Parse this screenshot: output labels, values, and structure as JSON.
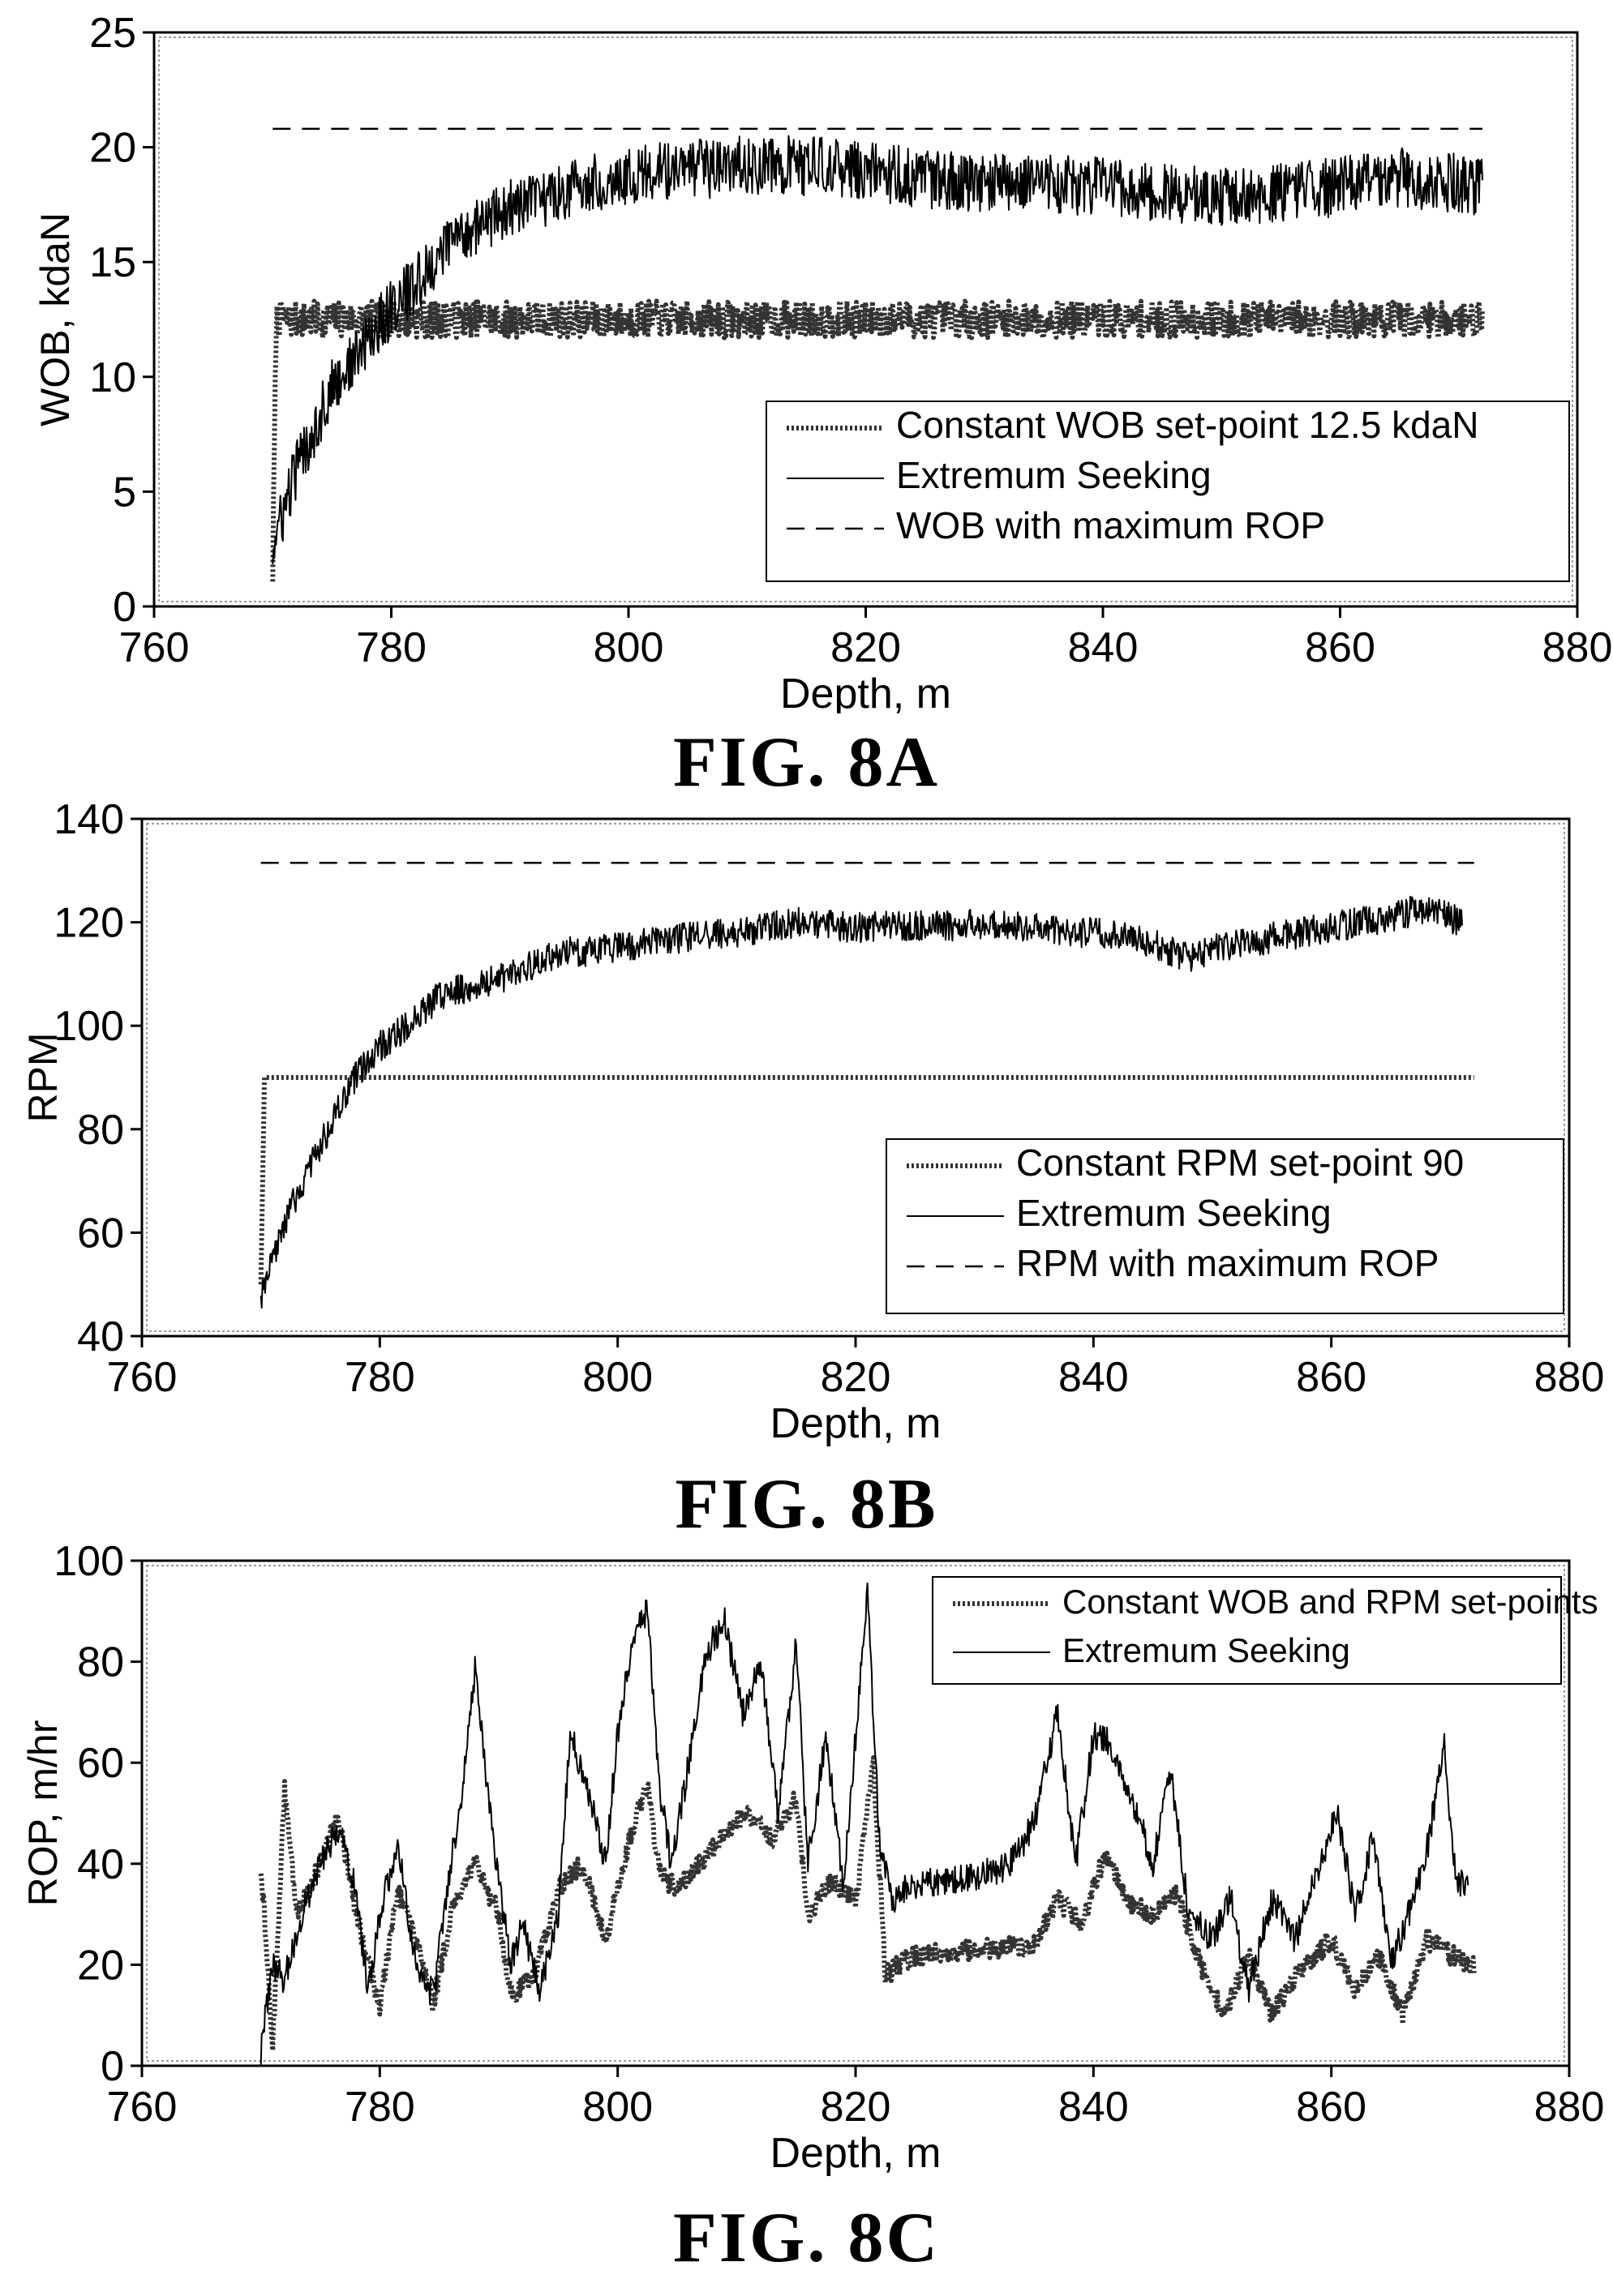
{
  "figures": [
    {
      "caption": "FIG. 8A"
    },
    {
      "caption": "FIG. 8B"
    },
    {
      "caption": "FIG. 8C"
    }
  ],
  "chart_data": [
    {
      "type": "line",
      "xlabel": "Depth, m",
      "ylabel": "WOB, kdaN",
      "xlim": [
        760,
        880
      ],
      "ylim": [
        0,
        25
      ],
      "x_ticks": [
        760,
        780,
        800,
        820,
        840,
        860,
        880
      ],
      "y_ticks": [
        0,
        5,
        10,
        15,
        20,
        25
      ],
      "legend_position": "lower-right",
      "series": [
        {
          "name": "Constant WOB set-point 12.5 kdaN",
          "style": "dotted-thick",
          "x": [
            770,
            770.3,
            772,
            780,
            800,
            820,
            840,
            860,
            872
          ],
          "y": [
            1.5,
            12.5,
            12.5,
            12.5,
            12.5,
            12.5,
            12.5,
            12.5,
            12.5
          ],
          "noise": 0.8
        },
        {
          "name": "Extremum Seeking",
          "style": "solid",
          "x": [
            770,
            772,
            775,
            778,
            780,
            783,
            785,
            790,
            795,
            800,
            805,
            810,
            815,
            820,
            825,
            830,
            840,
            850,
            855,
            860,
            865,
            872
          ],
          "y": [
            2.5,
            6,
            9.5,
            11.5,
            13,
            14.5,
            16,
            17.3,
            18.2,
            18.8,
            19,
            19.2,
            19.2,
            19,
            18.6,
            18.5,
            18.3,
            17.8,
            18,
            18.3,
            18.7,
            18.3
          ],
          "noise": 1.3
        },
        {
          "name": "WOB with maximum ROP",
          "style": "dashed",
          "x": [
            770,
            872
          ],
          "y": [
            20.8,
            20.8
          ],
          "noise": 0
        }
      ]
    },
    {
      "type": "line",
      "xlabel": "Depth, m",
      "ylabel": "RPM",
      "xlim": [
        760,
        880
      ],
      "ylim": [
        40,
        140
      ],
      "x_ticks": [
        760,
        780,
        800,
        820,
        840,
        860,
        880
      ],
      "y_ticks": [
        40,
        60,
        80,
        100,
        120,
        140
      ],
      "legend_position": "lower-right",
      "series": [
        {
          "name": "Constant RPM set-point 90",
          "style": "dotted-thick",
          "x": [
            770,
            770.3,
            772,
            800,
            820,
            840,
            860,
            872
          ],
          "y": [
            50,
            90,
            90,
            90,
            90,
            90,
            90,
            90
          ],
          "noise": 0
        },
        {
          "name": "Extremum Seeking",
          "style": "solid",
          "x": [
            770,
            772,
            775,
            778,
            780,
            783,
            785,
            790,
            795,
            800,
            805,
            810,
            815,
            820,
            830,
            840,
            845,
            848,
            850,
            855,
            860,
            865,
            868,
            871
          ],
          "y": [
            47,
            62,
            77,
            90,
            96,
            101,
            106,
            109,
            114,
            115,
            117,
            118,
            120,
            119,
            119.5,
            118,
            116,
            113,
            115,
            117,
            119,
            121,
            123,
            120
          ],
          "noise": 3
        },
        {
          "name": "RPM with maximum ROP",
          "style": "dashed",
          "x": [
            770,
            872
          ],
          "y": [
            131.5,
            131.5
          ],
          "noise": 0
        }
      ]
    },
    {
      "type": "line",
      "xlabel": "Depth, m",
      "ylabel": "ROP, m/hr",
      "xlim": [
        760,
        880
      ],
      "ylim": [
        0,
        100
      ],
      "x_ticks": [
        760,
        780,
        800,
        820,
        840,
        860,
        880
      ],
      "y_ticks": [
        0,
        20,
        40,
        60,
        80,
        100
      ],
      "legend_position": "top-right",
      "series": [
        {
          "name": "Constant WOB and RPM set-points",
          "style": "dotted-thick",
          "x": [
            770,
            771,
            772,
            773,
            775,
            776.5,
            778,
            780,
            781.5,
            783,
            784.5,
            786,
            788,
            790,
            791,
            793,
            795,
            797,
            799,
            801,
            802.5,
            803.5,
            805,
            807,
            809,
            811,
            813,
            815,
            816,
            818,
            820,
            821.5,
            822.5,
            825,
            830,
            835,
            837,
            839,
            841,
            843,
            845,
            847,
            849,
            851,
            853,
            855,
            857,
            860,
            862,
            864,
            866,
            868,
            870,
            872
          ],
          "y": [
            40,
            4,
            55,
            30,
            40,
            50,
            30,
            12,
            35,
            25,
            12,
            30,
            40,
            30,
            14,
            18,
            35,
            40,
            25,
            45,
            56,
            38,
            35,
            40,
            46,
            50,
            45,
            53,
            30,
            37,
            32,
            60,
            18,
            22,
            23,
            24,
            33,
            28,
            42,
            32,
            30,
            34,
            20,
            10,
            22,
            10,
            18,
            25,
            15,
            22,
            10,
            25,
            22,
            20
          ],
          "noise": 2
        },
        {
          "name": "Extremum Seeking",
          "style": "solid",
          "x": [
            770,
            771,
            772,
            773.5,
            775,
            776.5,
            778,
            779,
            780,
            781.5,
            783,
            784.5,
            786,
            787,
            788,
            789.5,
            791,
            792,
            793.5,
            795,
            796,
            797.5,
            799,
            800,
            801.5,
            802.5,
            803.5,
            804.5,
            806,
            807.5,
            809,
            810.5,
            812,
            813.5,
            815,
            816,
            817.5,
            819,
            820,
            821,
            822,
            823,
            825,
            830,
            833,
            835,
            837,
            838.5,
            840,
            841,
            843,
            845,
            846.5,
            848,
            850,
            851.5,
            853,
            855,
            857,
            859,
            860.5,
            862,
            863.5,
            865,
            866.5,
            868,
            869.5,
            870.5,
            871.5
          ],
          "y": [
            3,
            20,
            17,
            30,
            40,
            47,
            35,
            14,
            30,
            44,
            20,
            14,
            40,
            56,
            78,
            45,
            20,
            28,
            15,
            30,
            66,
            55,
            40,
            66,
            87,
            90,
            55,
            40,
            60,
            82,
            88,
            70,
            80,
            50,
            84,
            40,
            65,
            35,
            65,
            93,
            45,
            33,
            36,
            37,
            40,
            48,
            70,
            40,
            65,
            65,
            55,
            40,
            58,
            30,
            25,
            34,
            15,
            33,
            25,
            40,
            50,
            30,
            45,
            20,
            30,
            42,
            64,
            35,
            37
          ],
          "noise": 3
        }
      ]
    }
  ]
}
